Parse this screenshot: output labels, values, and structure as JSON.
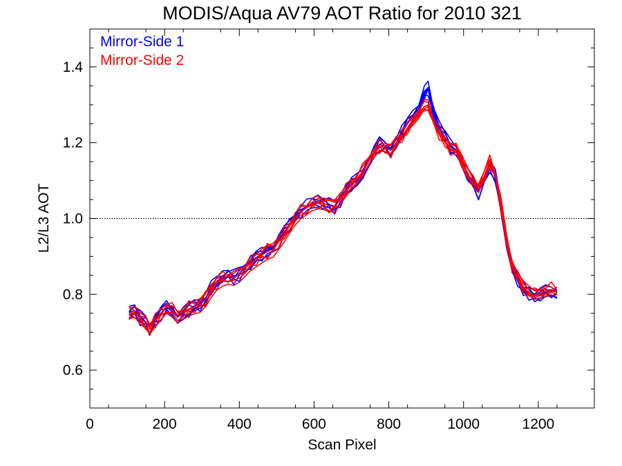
{
  "chart_data": {
    "type": "line",
    "title": "MODIS/Aqua AV79 AOT Ratio for 2010 321",
    "xlabel": "Scan Pixel",
    "ylabel": "L2/L3 AOT",
    "xlim": [
      0,
      1350
    ],
    "ylim": [
      0.5,
      1.5
    ],
    "xticks": [
      0,
      200,
      400,
      600,
      800,
      1000,
      1200
    ],
    "xtick_labels": [
      "0",
      "200",
      "400",
      "600",
      "800",
      "1000",
      "1200"
    ],
    "yticks": [
      0.6,
      0.8,
      1.0,
      1.2,
      1.4
    ],
    "ytick_labels": [
      "0.6",
      "0.8",
      "1.0",
      "1.2",
      "1.4"
    ],
    "reference_line": {
      "y": 1.0,
      "style": "dotted"
    },
    "grid": false,
    "legend_position": "top-left",
    "x": [
      105,
      120,
      135,
      150,
      160,
      175,
      190,
      205,
      220,
      235,
      250,
      265,
      280,
      295,
      310,
      325,
      340,
      355,
      370,
      385,
      400,
      415,
      430,
      445,
      460,
      475,
      490,
      505,
      520,
      535,
      550,
      565,
      580,
      595,
      610,
      625,
      640,
      655,
      670,
      685,
      700,
      715,
      730,
      745,
      760,
      775,
      790,
      805,
      820,
      835,
      850,
      865,
      880,
      895,
      905,
      920,
      935,
      950,
      965,
      980,
      995,
      1010,
      1025,
      1040,
      1055,
      1070,
      1085,
      1100,
      1115,
      1130,
      1145,
      1160,
      1175,
      1190,
      1205,
      1220,
      1235,
      1250
    ],
    "series": [
      {
        "name": "Mirror-Side 1",
        "color": "#0000ff",
        "values": [
          0.752,
          0.757,
          0.737,
          0.727,
          0.712,
          0.732,
          0.747,
          0.765,
          0.755,
          0.74,
          0.75,
          0.76,
          0.77,
          0.775,
          0.79,
          0.815,
          0.835,
          0.845,
          0.85,
          0.845,
          0.855,
          0.87,
          0.885,
          0.895,
          0.905,
          0.915,
          0.92,
          0.94,
          0.96,
          0.985,
          1.005,
          1.02,
          1.03,
          1.04,
          1.045,
          1.04,
          1.035,
          1.03,
          1.05,
          1.07,
          1.09,
          1.1,
          1.12,
          1.15,
          1.175,
          1.195,
          1.19,
          1.18,
          1.2,
          1.225,
          1.25,
          1.27,
          1.29,
          1.33,
          1.345,
          1.28,
          1.24,
          1.215,
          1.19,
          1.18,
          1.15,
          1.12,
          1.09,
          1.07,
          1.1,
          1.14,
          1.11,
          1.03,
          0.94,
          0.87,
          0.84,
          0.815,
          0.805,
          0.795,
          0.8,
          0.805,
          0.81,
          0.805
        ]
      },
      {
        "name": "Mirror-Side 2",
        "color": "#ff0000",
        "values": [
          0.748,
          0.753,
          0.735,
          0.725,
          0.71,
          0.73,
          0.748,
          0.768,
          0.758,
          0.742,
          0.752,
          0.762,
          0.768,
          0.772,
          0.788,
          0.812,
          0.832,
          0.842,
          0.848,
          0.844,
          0.853,
          0.868,
          0.883,
          0.893,
          0.903,
          0.913,
          0.918,
          0.938,
          0.958,
          0.982,
          1.002,
          1.018,
          1.028,
          1.038,
          1.043,
          1.04,
          1.034,
          1.032,
          1.052,
          1.072,
          1.092,
          1.104,
          1.124,
          1.152,
          1.172,
          1.19,
          1.186,
          1.18,
          1.198,
          1.218,
          1.238,
          1.258,
          1.275,
          1.295,
          1.3,
          1.255,
          1.225,
          1.205,
          1.185,
          1.178,
          1.152,
          1.122,
          1.094,
          1.08,
          1.11,
          1.15,
          1.115,
          1.04,
          0.945,
          0.875,
          0.842,
          0.818,
          0.806,
          0.796,
          0.802,
          0.808,
          0.812,
          0.806
        ]
      }
    ]
  }
}
